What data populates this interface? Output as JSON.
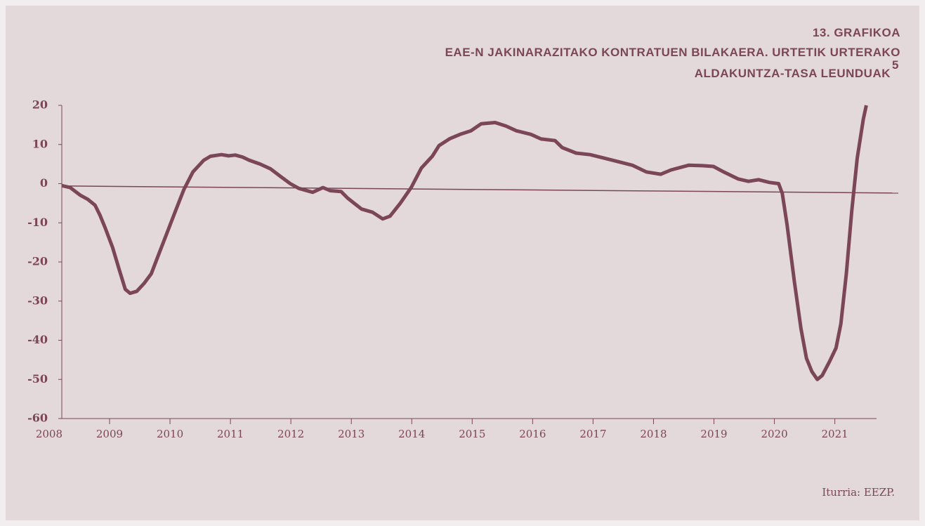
{
  "chart_data": {
    "type": "line",
    "label": "13. GRAFIKOA",
    "title_lines": [
      "EAE-N JAKINARAZITAKO KONTRATUEN BILAKAERA. URTETIK URTERAKO",
      "ALDAKUNTZA-TASA LEUNDUAK"
    ],
    "title_note": "5",
    "source": "Iturria: EEZP.",
    "xlim": [
      2008.21,
      2021.69
    ],
    "xticks": [
      2008,
      2009,
      2010,
      2011,
      2012,
      2013,
      2014,
      2015,
      2016,
      2017,
      2018,
      2019,
      2020,
      2021
    ],
    "ylim": [
      -60,
      20
    ],
    "yticks": [
      -60,
      -50,
      -40,
      -30,
      -20,
      -10,
      0,
      10,
      20
    ],
    "series": [
      {
        "color": "#7b4658",
        "x": [
          2008.21,
          2008.35,
          2008.52,
          2008.64,
          2008.76,
          2008.84,
          2008.93,
          2009.05,
          2009.16,
          2009.26,
          2009.34,
          2009.45,
          2009.57,
          2009.69,
          2009.8,
          2009.98,
          2010.09,
          2010.23,
          2010.38,
          2010.56,
          2010.67,
          2010.85,
          2010.97,
          2011.08,
          2011.2,
          2011.31,
          2011.49,
          2011.66,
          2011.84,
          2011.99,
          2012.13,
          2012.36,
          2012.53,
          2012.65,
          2012.83,
          2012.94,
          2013.17,
          2013.35,
          2013.52,
          2013.64,
          2013.81,
          2013.99,
          2014.16,
          2014.34,
          2014.45,
          2014.63,
          2014.8,
          2014.98,
          2015.15,
          2015.38,
          2015.56,
          2015.73,
          2015.97,
          2016.14,
          2016.37,
          2016.49,
          2016.72,
          2016.95,
          2017.19,
          2017.42,
          2017.65,
          2017.88,
          2018.12,
          2018.29,
          2018.58,
          2018.81,
          2018.99,
          2019.16,
          2019.4,
          2019.57,
          2019.74,
          2019.92,
          2020.07,
          2020.13,
          2020.21,
          2020.33,
          2020.44,
          2020.53,
          2020.62,
          2020.71,
          2020.79,
          2020.91,
          2021.02,
          2021.1,
          2021.19,
          2021.28,
          2021.37,
          2021.47,
          2021.52
        ],
        "values": [
          -0.5,
          -1,
          -3,
          -4,
          -5.5,
          -8,
          -11.4,
          -16.3,
          -22,
          -27,
          -28,
          -27.5,
          -25.5,
          -23,
          -18.6,
          -11.4,
          -7,
          -1.5,
          3,
          6,
          7,
          7.4,
          7.1,
          7.3,
          6.8,
          6,
          5,
          3.8,
          1.7,
          0,
          -1.2,
          -2.2,
          -1,
          -1.8,
          -2,
          -3.7,
          -6.5,
          -7.3,
          -9,
          -8.3,
          -5,
          -1,
          4,
          7,
          9.7,
          11.5,
          12.6,
          13.5,
          15.3,
          15.6,
          14.7,
          13.5,
          12.6,
          11.4,
          11,
          9.2,
          7.8,
          7.4,
          6.5,
          5.6,
          4.7,
          3,
          2.4,
          3.5,
          4.7,
          4.6,
          4.4,
          3,
          1.2,
          0.6,
          1,
          0.3,
          0,
          -2.5,
          -10.5,
          -25,
          -37,
          -44.6,
          -48,
          -50,
          -49,
          -45.5,
          -42,
          -35.8,
          -23,
          -7,
          6.5,
          16.4,
          20
        ]
      },
      {
        "color": "#7b4658",
        "x": [
          2008.21,
          2022.05
        ],
        "values": [
          -0.6,
          -2.4
        ]
      }
    ]
  }
}
